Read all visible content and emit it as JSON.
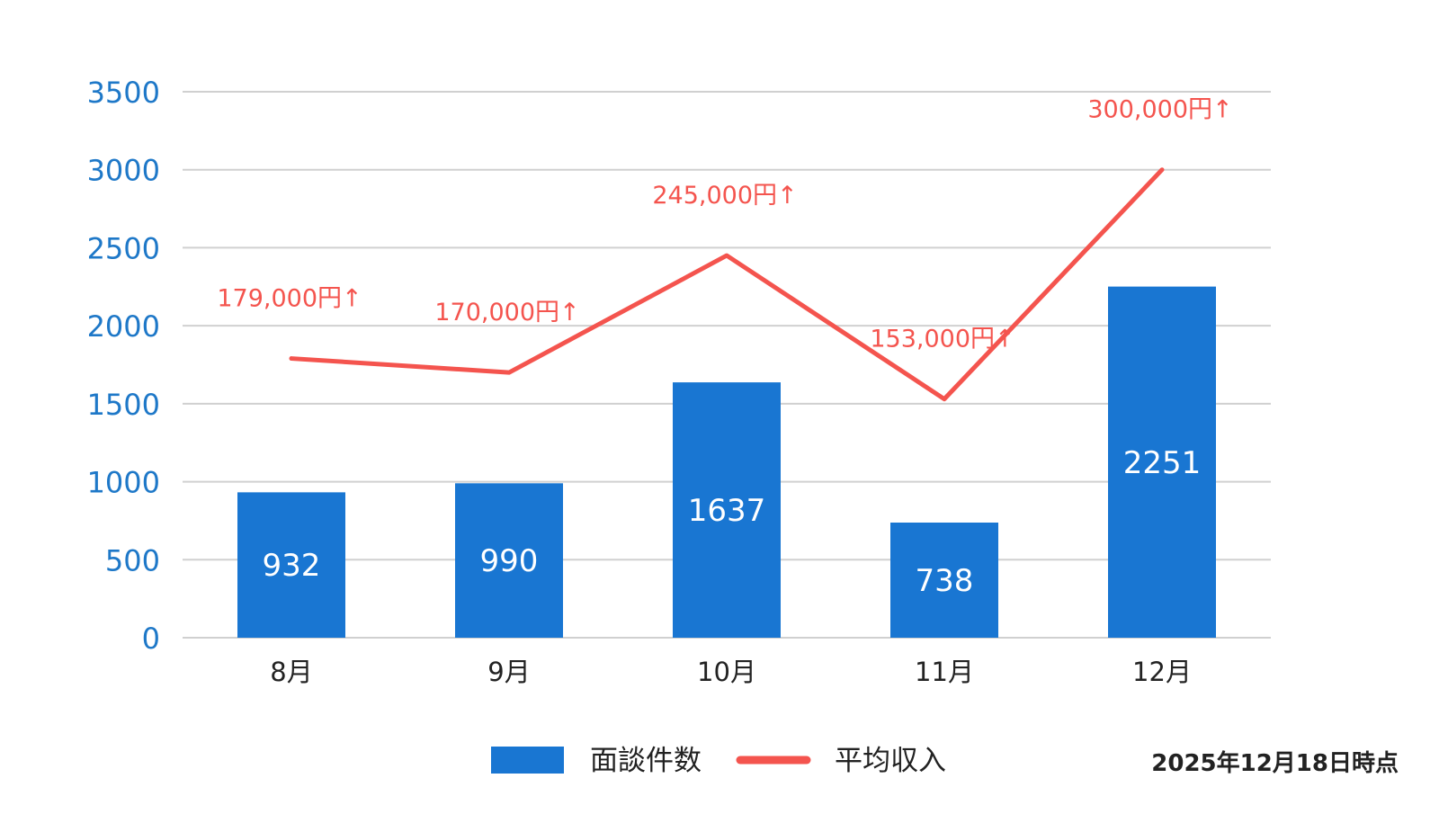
{
  "chart_data": {
    "type": "bar",
    "categories": [
      "8月",
      "9月",
      "10月",
      "11月",
      "12月"
    ],
    "ylim": [
      0,
      3500
    ],
    "yticks": [
      0,
      500,
      1000,
      1500,
      2000,
      2500,
      3000,
      3500
    ],
    "grid": true,
    "legend_position": "bottom",
    "series": [
      {
        "name": "面談件数",
        "type": "bar",
        "values": [
          932,
          990,
          1637,
          738,
          2251
        ],
        "data_labels": [
          "932",
          "990",
          "1637",
          "738",
          "2251"
        ],
        "color": "#1976D2"
      },
      {
        "name": "平均収入",
        "type": "line",
        "values": [
          1790,
          1700,
          2450,
          1530,
          3000
        ],
        "data_labels": [
          "179,000円↑",
          "170,000円↑",
          "245,000円↑",
          "153,000円↑",
          "300,000円↑"
        ],
        "color": "#F4544E"
      }
    ],
    "annotation": "2025年12月18日時点"
  },
  "colors": {
    "tick_label_y": "#1E78C8",
    "tick_label_x": "#222222",
    "grid": "#D0D0D0",
    "bar_label": "#FFFFFF"
  }
}
